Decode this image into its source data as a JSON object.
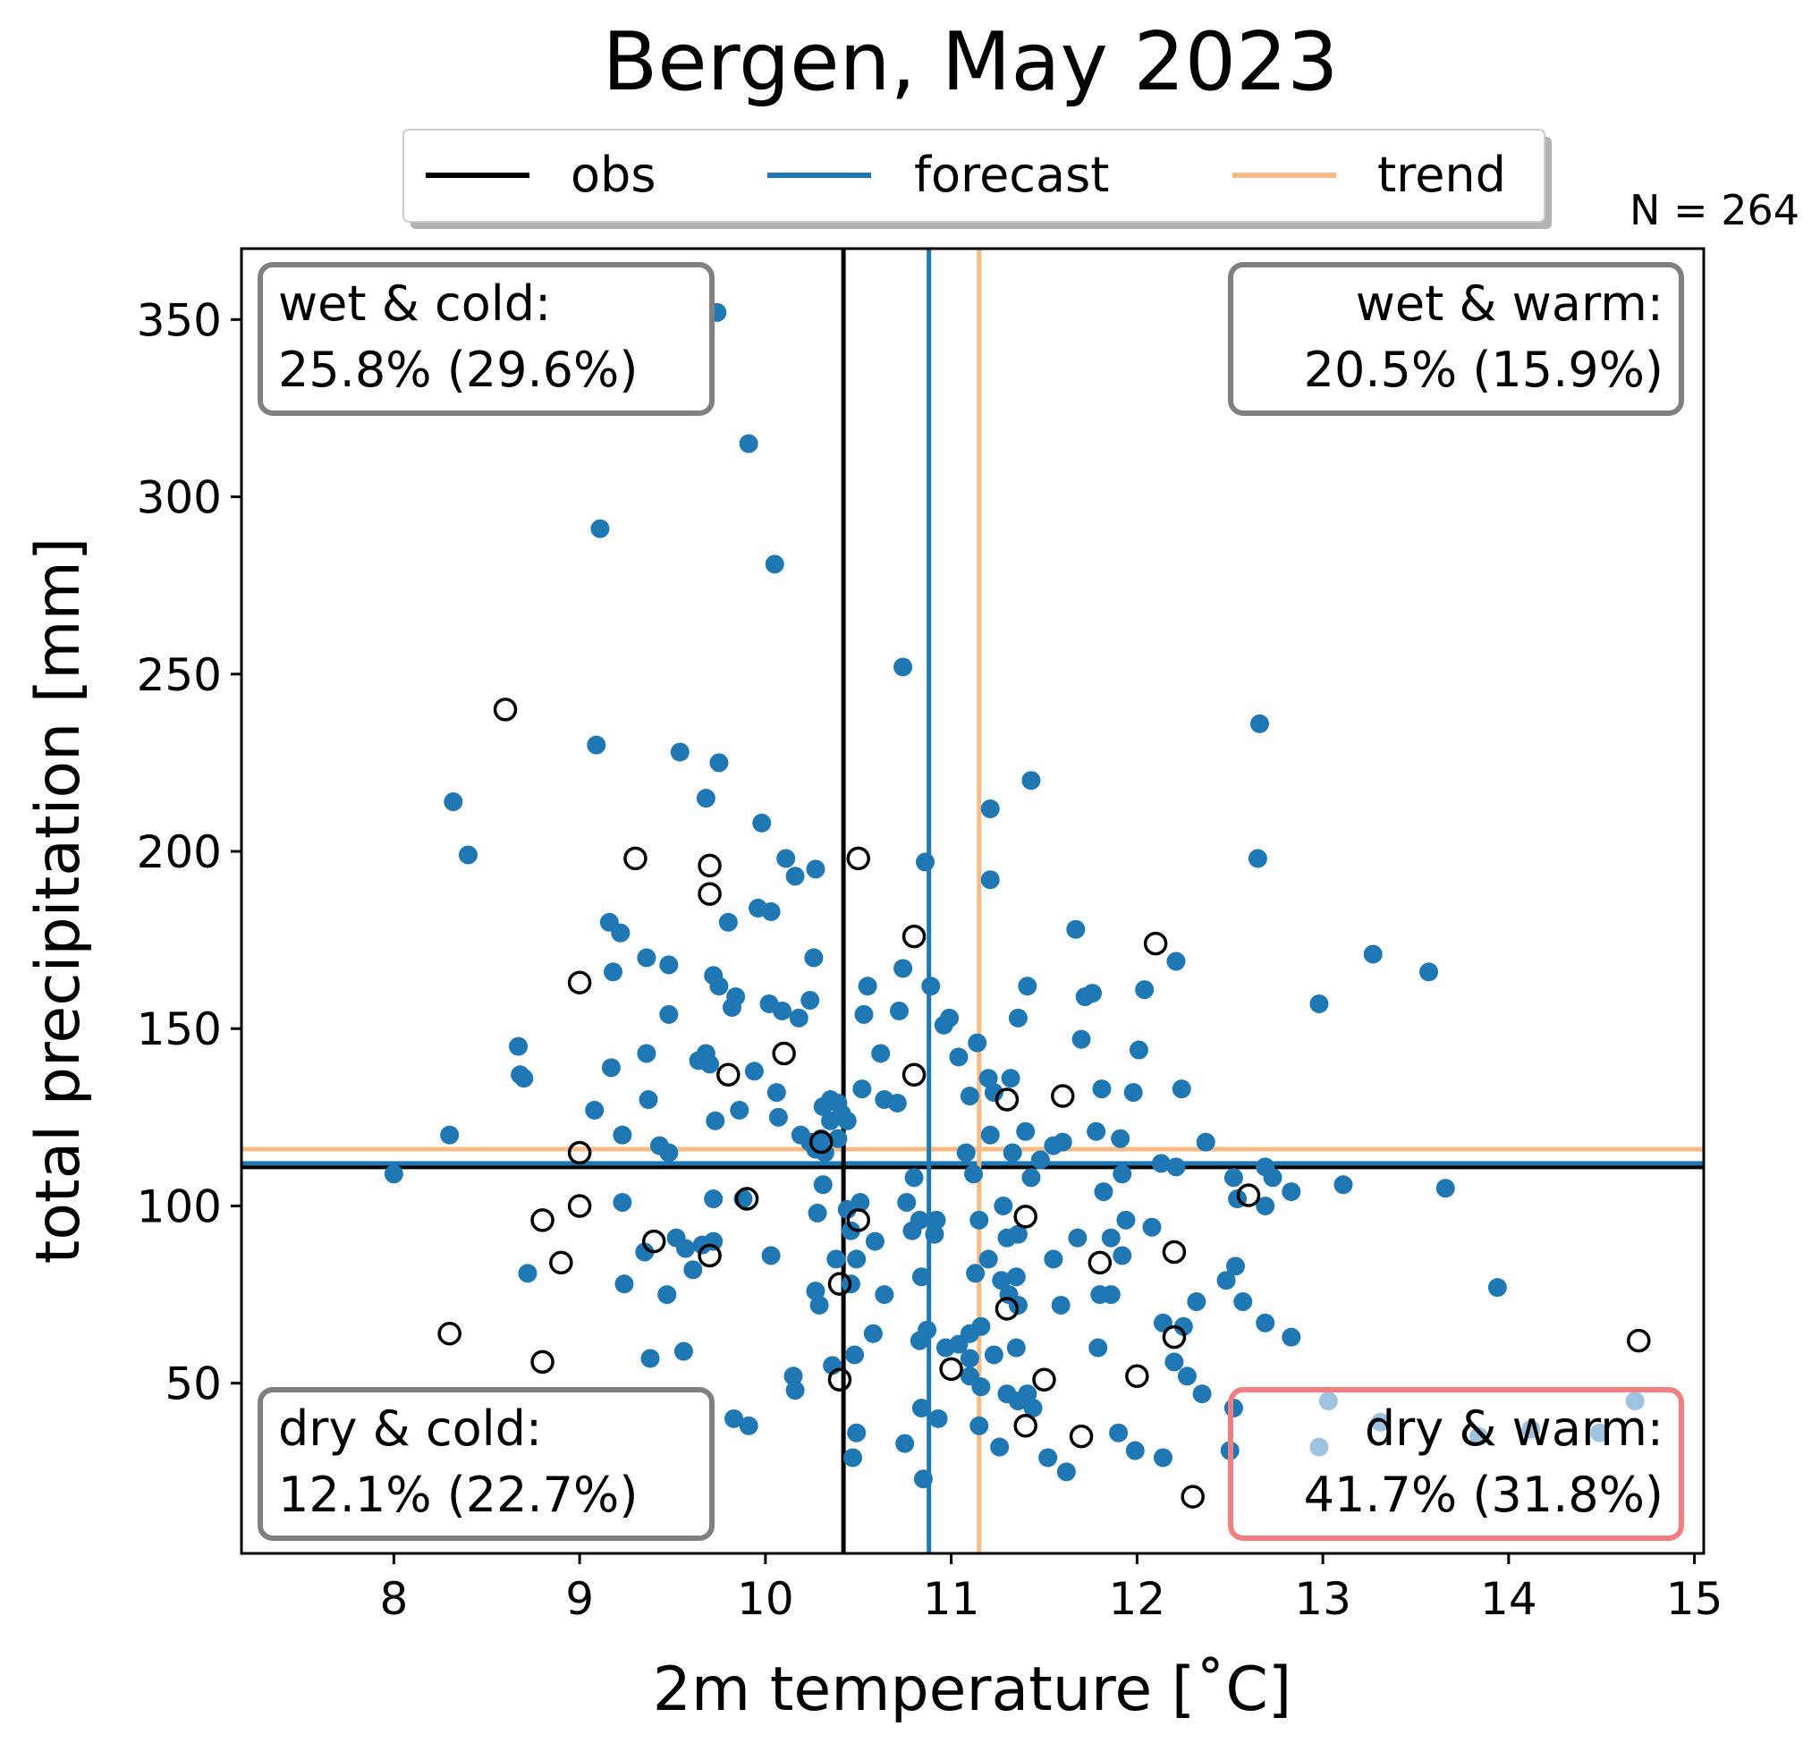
{
  "chart_data": {
    "type": "scatter",
    "title": "Bergen, May 2023",
    "xlabel": "2m temperature [˚C]",
    "ylabel": "total precipitation [mm]",
    "xlim": [
      7.18,
      15.05
    ],
    "ylim": [
      2,
      370
    ],
    "xticks": [
      8,
      9,
      10,
      11,
      12,
      13,
      14,
      15
    ],
    "yticks": [
      50,
      100,
      150,
      200,
      250,
      300,
      350
    ],
    "grid": false,
    "legend_placement": "top-center, above plot",
    "legend": [
      {
        "label": "obs",
        "color": "#000000"
      },
      {
        "label": "forecast",
        "color": "#1f77b4"
      },
      {
        "label": "trend",
        "color": "#f7bb86"
      }
    ],
    "n_label": "N = 264",
    "reference_lines": {
      "obs": {
        "x": 10.42,
        "y": 111,
        "color": "#000000"
      },
      "forecast": {
        "x": 10.88,
        "y": 112,
        "color": "#1f77b4"
      },
      "trend": {
        "x": 11.15,
        "y": 116,
        "color": "#f7bb86"
      }
    },
    "quadrants": [
      {
        "id": "wet-cold",
        "line1": "wet & cold:",
        "line2": "25.8% (29.6%)",
        "position": "top-left",
        "border": "#808080"
      },
      {
        "id": "wet-warm",
        "line1": "wet & warm:",
        "line2": "20.5% (15.9%)",
        "position": "top-right",
        "border": "#808080"
      },
      {
        "id": "dry-cold",
        "line1": "dry & cold:",
        "line2": "12.1% (22.7%)",
        "position": "bottom-left",
        "border": "#808080"
      },
      {
        "id": "dry-warm",
        "line1": "dry & warm:",
        "line2": "41.7% (31.8%)",
        "position": "bottom-right",
        "border": "#f08080"
      }
    ],
    "series": [
      {
        "name": "forecast",
        "color": "#1f77b4",
        "marker": "filled-circle",
        "points": [
          [
            9.74,
            352
          ],
          [
            9.91,
            315
          ],
          [
            9.11,
            291
          ],
          [
            10.05,
            281
          ],
          [
            10.74,
            252
          ],
          [
            12.66,
            236
          ],
          [
            9.09,
            230
          ],
          [
            9.54,
            228
          ],
          [
            9.75,
            225
          ],
          [
            11.43,
            220
          ],
          [
            9.68,
            215
          ],
          [
            8.32,
            214
          ],
          [
            11.21,
            212
          ],
          [
            9.98,
            208
          ],
          [
            8.4,
            199
          ],
          [
            10.11,
            198
          ],
          [
            12.65,
            198
          ],
          [
            10.86,
            197
          ],
          [
            10.27,
            195
          ],
          [
            10.16,
            193
          ],
          [
            11.21,
            192
          ],
          [
            9.96,
            184
          ],
          [
            10.03,
            183
          ],
          [
            9.8,
            180
          ],
          [
            9.16,
            180
          ],
          [
            9.22,
            177
          ],
          [
            11.67,
            178
          ],
          [
            13.27,
            171
          ],
          [
            10.26,
            170
          ],
          [
            9.36,
            170
          ],
          [
            12.21,
            169
          ],
          [
            9.48,
            168
          ],
          [
            10.74,
            167
          ],
          [
            9.18,
            166
          ],
          [
            13.57,
            166
          ],
          [
            9.72,
            165
          ],
          [
            9.75,
            162
          ],
          [
            10.55,
            162
          ],
          [
            10.89,
            162
          ],
          [
            11.41,
            162
          ],
          [
            12.04,
            161
          ],
          [
            11.76,
            160
          ],
          [
            11.72,
            159
          ],
          [
            9.84,
            159
          ],
          [
            10.24,
            158
          ],
          [
            10.02,
            157
          ],
          [
            12.98,
            157
          ],
          [
            9.82,
            156
          ],
          [
            10.09,
            155
          ],
          [
            10.72,
            155
          ],
          [
            10.53,
            154
          ],
          [
            9.48,
            154
          ],
          [
            10.99,
            153
          ],
          [
            11.36,
            153
          ],
          [
            10.96,
            151
          ],
          [
            10.18,
            153
          ],
          [
            11.7,
            147
          ],
          [
            11.14,
            146
          ],
          [
            8.67,
            145
          ],
          [
            12.01,
            144
          ],
          [
            10.62,
            143
          ],
          [
            9.36,
            143
          ],
          [
            9.68,
            143
          ],
          [
            9.7,
            140
          ],
          [
            11.04,
            142
          ],
          [
            9.64,
            141
          ],
          [
            8.68,
            137
          ],
          [
            9.17,
            139
          ],
          [
            9.94,
            138
          ],
          [
            8.7,
            136
          ],
          [
            11.2,
            136
          ],
          [
            11.32,
            136
          ],
          [
            10.52,
            133
          ],
          [
            11.81,
            133
          ],
          [
            12.24,
            133
          ],
          [
            11.98,
            132
          ],
          [
            11.23,
            132
          ],
          [
            10.06,
            132
          ],
          [
            10.64,
            130
          ],
          [
            11.1,
            131
          ],
          [
            10.71,
            129
          ],
          [
            10.35,
            130
          ],
          [
            10.39,
            129
          ],
          [
            9.37,
            130
          ],
          [
            10.31,
            128
          ],
          [
            9.86,
            127
          ],
          [
            9.08,
            127
          ],
          [
            9.73,
            124
          ],
          [
            10.07,
            125
          ],
          [
            10.35,
            124
          ],
          [
            10.41,
            126
          ],
          [
            8.3,
            120
          ],
          [
            9.23,
            120
          ],
          [
            10.19,
            120
          ],
          [
            10.3,
            119
          ],
          [
            10.39,
            119
          ],
          [
            10.27,
            116
          ],
          [
            10.44,
            124
          ],
          [
            11.21,
            120
          ],
          [
            11.4,
            121
          ],
          [
            11.6,
            118
          ],
          [
            11.78,
            121
          ],
          [
            11.91,
            119
          ],
          [
            12.37,
            118
          ],
          [
            9.43,
            117
          ],
          [
            9.48,
            115
          ],
          [
            10.32,
            115
          ],
          [
            10.24,
            118
          ],
          [
            11.08,
            115
          ],
          [
            11.33,
            115
          ],
          [
            11.55,
            117
          ],
          [
            11.48,
            113
          ],
          [
            12.13,
            112
          ],
          [
            11.12,
            109
          ],
          [
            12.21,
            111
          ],
          [
            12.69,
            111
          ],
          [
            12.52,
            108
          ],
          [
            12.73,
            108
          ],
          [
            8.0,
            109
          ],
          [
            10.8,
            108
          ],
          [
            11.43,
            108
          ],
          [
            11.92,
            109
          ],
          [
            12.83,
            104
          ],
          [
            11.82,
            104
          ],
          [
            13.11,
            106
          ],
          [
            13.66,
            105
          ],
          [
            10.31,
            106
          ],
          [
            9.72,
            102
          ],
          [
            12.54,
            102
          ],
          [
            11.28,
            100
          ],
          [
            12.69,
            100
          ],
          [
            9.23,
            101
          ],
          [
            10.51,
            101
          ],
          [
            10.76,
            101
          ],
          [
            10.28,
            98
          ],
          [
            10.44,
            99
          ],
          [
            10.92,
            96
          ],
          [
            10.83,
            96
          ],
          [
            11.15,
            96
          ],
          [
            11.94,
            96
          ],
          [
            12.08,
            94
          ],
          [
            9.88,
            102
          ],
          [
            10.46,
            93
          ],
          [
            10.59,
            90
          ],
          [
            10.79,
            93
          ],
          [
            10.91,
            92
          ],
          [
            11.36,
            92
          ],
          [
            11.3,
            91
          ],
          [
            11.68,
            91
          ],
          [
            11.86,
            91
          ],
          [
            9.35,
            87
          ],
          [
            9.52,
            91
          ],
          [
            9.66,
            89
          ],
          [
            9.72,
            90
          ],
          [
            9.57,
            88
          ],
          [
            10.03,
            86
          ],
          [
            10.38,
            85
          ],
          [
            10.49,
            85
          ],
          [
            11.2,
            85
          ],
          [
            11.55,
            85
          ],
          [
            11.92,
            86
          ],
          [
            12.53,
            83
          ],
          [
            9.61,
            82
          ],
          [
            8.72,
            81
          ],
          [
            10.84,
            80
          ],
          [
            11.13,
            81
          ],
          [
            11.35,
            80
          ],
          [
            11.27,
            79
          ],
          [
            12.48,
            79
          ],
          [
            9.24,
            78
          ],
          [
            10.27,
            76
          ],
          [
            10.46,
            78
          ],
          [
            13.94,
            77
          ],
          [
            11.31,
            75
          ],
          [
            11.8,
            75
          ],
          [
            11.86,
            75
          ],
          [
            9.47,
            75
          ],
          [
            10.64,
            75
          ],
          [
            10.29,
            72
          ],
          [
            11.36,
            72
          ],
          [
            11.59,
            72
          ],
          [
            12.57,
            73
          ],
          [
            12.32,
            73
          ],
          [
            10.87,
            65
          ],
          [
            11.1,
            64
          ],
          [
            11.16,
            66
          ],
          [
            12.14,
            67
          ],
          [
            12.25,
            66
          ],
          [
            12.69,
            67
          ],
          [
            12.83,
            63
          ],
          [
            10.58,
            64
          ],
          [
            10.83,
            62
          ],
          [
            10.97,
            60
          ],
          [
            11.04,
            61
          ],
          [
            11.1,
            57
          ],
          [
            11.23,
            58
          ],
          [
            11.35,
            60
          ],
          [
            11.79,
            60
          ],
          [
            12.2,
            56
          ],
          [
            9.38,
            57
          ],
          [
            9.56,
            59
          ],
          [
            10.48,
            58
          ],
          [
            10.15,
            52
          ],
          [
            10.36,
            55
          ],
          [
            11.1,
            52
          ],
          [
            12.27,
            52
          ],
          [
            11.16,
            49
          ],
          [
            10.16,
            48
          ],
          [
            11.3,
            47
          ],
          [
            11.36,
            45
          ],
          [
            11.41,
            47
          ],
          [
            11.44,
            43
          ],
          [
            12.35,
            47
          ],
          [
            10.84,
            43
          ],
          [
            12.52,
            43
          ],
          [
            9.83,
            40
          ],
          [
            9.91,
            38
          ],
          [
            10.93,
            40
          ],
          [
            11.15,
            38
          ],
          [
            10.49,
            36
          ],
          [
            11.9,
            36
          ],
          [
            11.26,
            32
          ],
          [
            10.75,
            33
          ],
          [
            11.52,
            29
          ],
          [
            10.47,
            29
          ],
          [
            11.99,
            31
          ],
          [
            12.5,
            31
          ],
          [
            12.14,
            29
          ],
          [
            11.62,
            25
          ],
          [
            10.85,
            23
          ]
        ]
      },
      {
        "name": "forecast (faded, outside range)",
        "color": "#9ec3e0",
        "marker": "filled-circle",
        "points": [
          [
            7.55,
            26
          ],
          [
            13.03,
            45
          ],
          [
            14.68,
            45
          ],
          [
            13.31,
            39
          ],
          [
            14.12,
            37
          ],
          [
            14.49,
            36
          ],
          [
            13.84,
            35
          ],
          [
            12.98,
            32
          ]
        ]
      },
      {
        "name": "obs",
        "color": "#000000",
        "marker": "open-circle",
        "points": [
          [
            8.6,
            240
          ],
          [
            9.3,
            198
          ],
          [
            10.5,
            198
          ],
          [
            9.7,
            196
          ],
          [
            9.7,
            188
          ],
          [
            10.8,
            176
          ],
          [
            12.1,
            174
          ],
          [
            9.0,
            163
          ],
          [
            10.1,
            143
          ],
          [
            9.8,
            137
          ],
          [
            10.8,
            137
          ],
          [
            11.6,
            131
          ],
          [
            11.3,
            130
          ],
          [
            10.3,
            118
          ],
          [
            9.0,
            115
          ],
          [
            12.6,
            103
          ],
          [
            9.9,
            102
          ],
          [
            9.0,
            100
          ],
          [
            11.4,
            97
          ],
          [
            8.8,
            96
          ],
          [
            10.5,
            96
          ],
          [
            9.4,
            90
          ],
          [
            12.2,
            87
          ],
          [
            9.7,
            86
          ],
          [
            8.9,
            84
          ],
          [
            11.8,
            84
          ],
          [
            10.4,
            78
          ],
          [
            11.3,
            71
          ],
          [
            8.3,
            64
          ],
          [
            12.2,
            63
          ],
          [
            14.7,
            62
          ],
          [
            8.8,
            56
          ],
          [
            11.0,
            54
          ],
          [
            12.0,
            52
          ],
          [
            10.4,
            51
          ],
          [
            11.5,
            51
          ],
          [
            11.4,
            38
          ],
          [
            11.7,
            35
          ],
          [
            12.3,
            18
          ]
        ]
      }
    ]
  }
}
